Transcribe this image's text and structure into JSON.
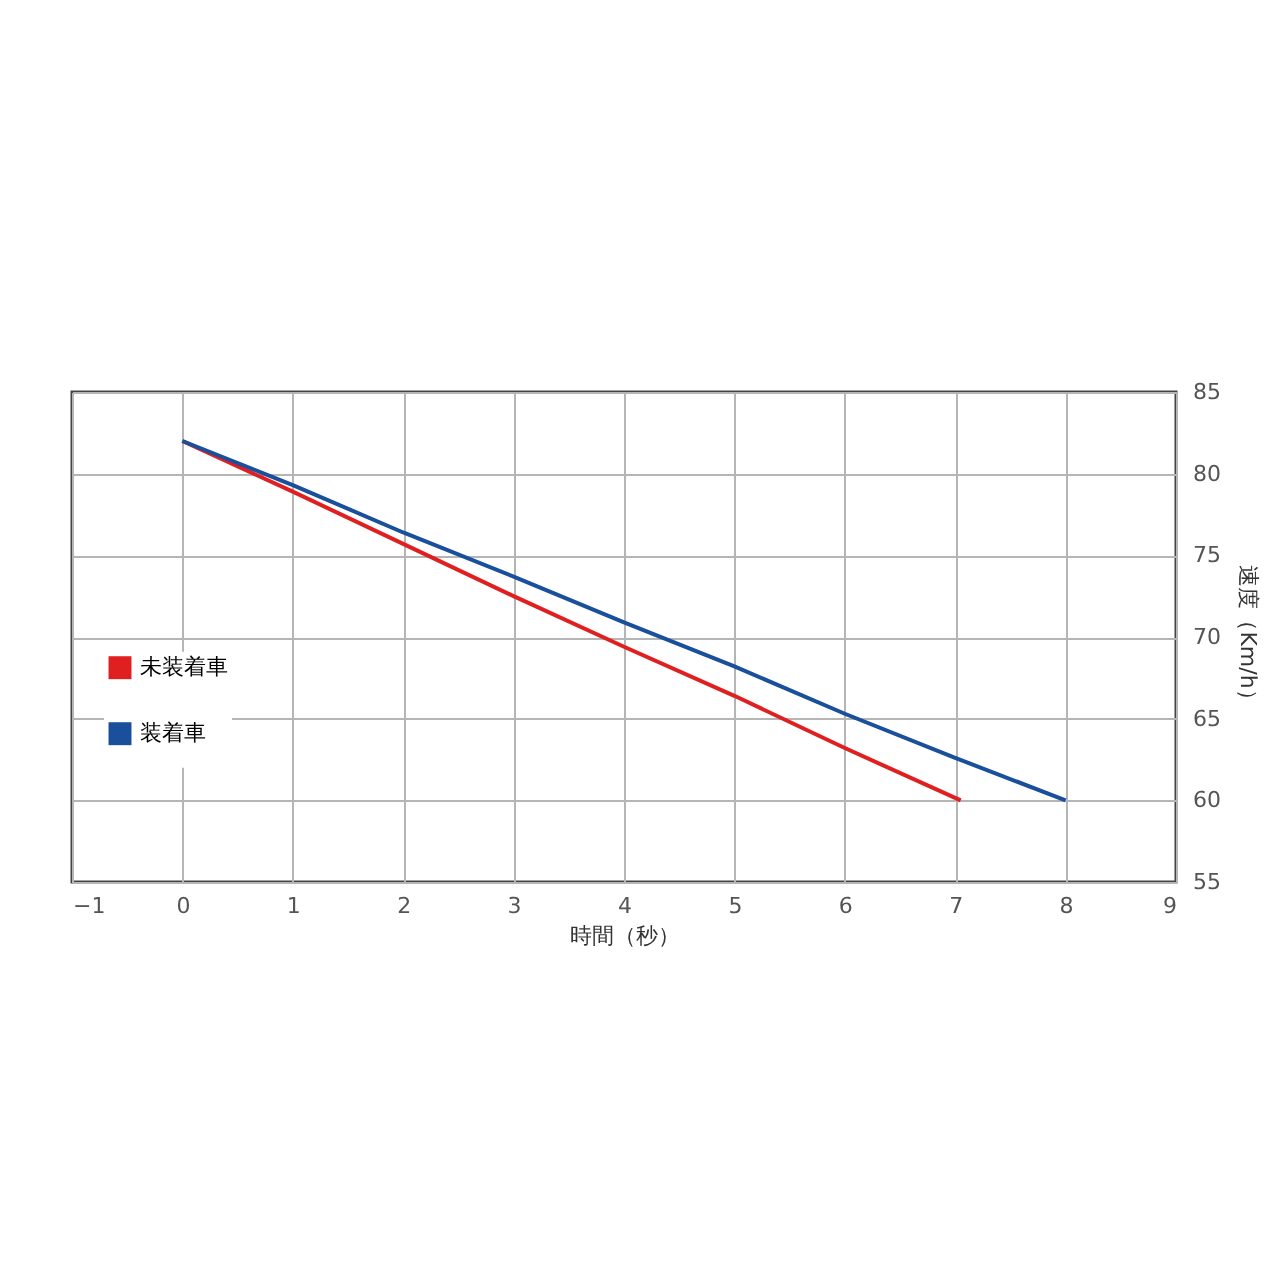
{
  "chart_data": {
    "type": "line",
    "xlabel": "時間（秒）",
    "ylabel": "速度（Km/h）",
    "xlim": [
      -1,
      9
    ],
    "xticks": [
      -1,
      0,
      1,
      2,
      3,
      4,
      5,
      6,
      7,
      8,
      9
    ],
    "ylim": [
      55,
      85
    ],
    "yticks": [
      55,
      60,
      65,
      70,
      75,
      80,
      85
    ],
    "grid": true,
    "legend": "left",
    "marker": "none",
    "line_style": "solid",
    "series": [
      {
        "name": "未装着車",
        "color": "#e02020",
        "x": [
          0,
          1,
          2,
          3,
          4,
          5,
          6,
          7.05
        ],
        "values": [
          82,
          78.9,
          75.7,
          72.5,
          69.4,
          66.4,
          63.2,
          60
        ]
      },
      {
        "name": "装着車",
        "color": "#1a4f9c",
        "x": [
          0,
          1,
          2,
          3,
          4,
          5,
          6,
          7,
          8
        ],
        "values": [
          82,
          79.3,
          76.4,
          73.7,
          70.9,
          68.2,
          65.3,
          62.6,
          60
        ]
      }
    ]
  }
}
